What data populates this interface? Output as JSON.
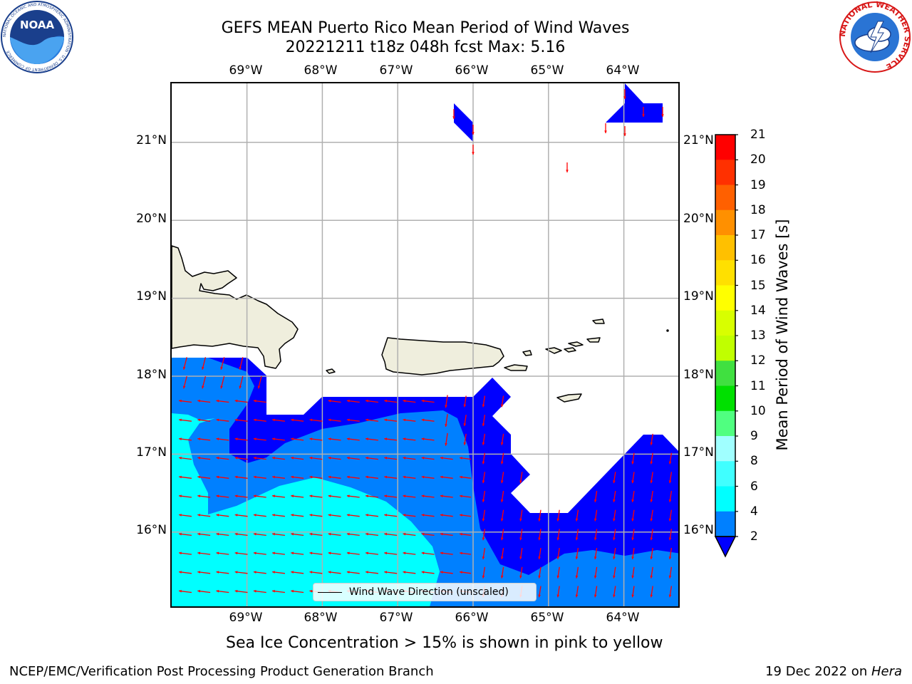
{
  "title_line1": "GEFS MEAN Puerto Rico Mean Period of Wind Waves",
  "title_line2": "20221211 t18z 048h fcst   Max: 5.16",
  "lon_labels": [
    "69°W",
    "68°W",
    "67°W",
    "66°W",
    "65°W",
    "64°W"
  ],
  "lat_labels": [
    "21°N",
    "20°N",
    "19°N",
    "18°N",
    "17°N",
    "16°N"
  ],
  "legend_label": "Wind Wave Direction (unscaled)",
  "colorbar": {
    "label": "Mean Period of Wind Waves [s]",
    "ticks": [
      "2",
      "4",
      "6",
      "8",
      "9",
      "10",
      "11",
      "12",
      "13",
      "14",
      "15",
      "16",
      "17",
      "18",
      "19",
      "20",
      "21"
    ],
    "colors": [
      "#0000ff",
      "#0080ff",
      "#00ffff",
      "#40ffff",
      "#a0ffff",
      "#50ff80",
      "#00e000",
      "#40e040",
      "#c0ff00",
      "#d8ff00",
      "#ffff00",
      "#ffe000",
      "#ffc000",
      "#ff9000",
      "#ff6000",
      "#ff3000",
      "#ff0000"
    ],
    "extend_color": "#0000ff"
  },
  "subtitle": "Sea Ice Concentration > 15% is shown in pink to yellow",
  "credit_left": "NCEP/EMC/Verification Post Processing Product Generation Branch",
  "credit_right_date": "19 Dec 2022 on ",
  "credit_right_host": "Hera",
  "logos": {
    "noaa": "NOAA",
    "noaa_ring": "NATIONAL OCEANIC AND ATMOSPHERIC ADMINISTRATION · U.S. DEPARTMENT OF COMMERCE",
    "nws_ring": "NATIONAL WEATHER SERVICE"
  },
  "map": {
    "lon_range": [
      -70,
      -63.2
    ],
    "lat_range": [
      15,
      21.75
    ],
    "land_color": "#efeedd",
    "arrow_color": "#ff0000",
    "grid_color": "#b0b0b0"
  }
}
